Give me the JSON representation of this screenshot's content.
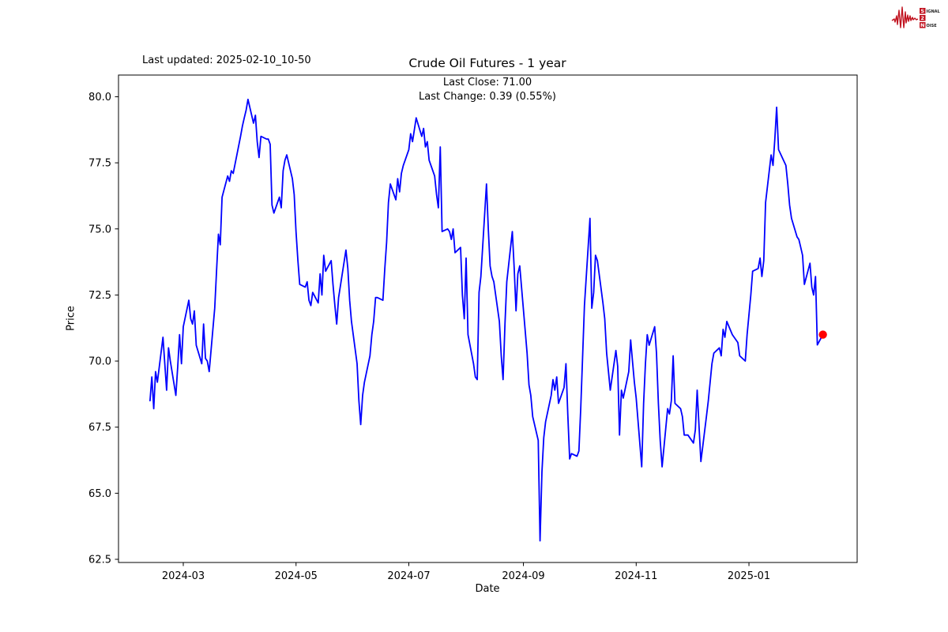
{
  "header": {
    "last_updated": "Last updated: 2025-02-10_10-50",
    "logo": {
      "row1_boxed": "S",
      "row1_rest": "IGNAL",
      "row2_boxed": "2",
      "row3_boxed": "N",
      "row3_rest": "OISE",
      "accent_color": "#c1121f"
    }
  },
  "chart_data": {
    "type": "line",
    "title": "Crude Oil Futures - 1 year",
    "annotation_line1": "Last Close: 71.00",
    "annotation_line2": "Last Change: 0.39 (0.55%)",
    "xlabel": "Date",
    "ylabel": "Price",
    "x_ticks": [
      "2024-03",
      "2024-05",
      "2024-07",
      "2024-09",
      "2024-11",
      "2025-01"
    ],
    "y_ticks": [
      "62.5",
      "65.0",
      "67.5",
      "70.0",
      "72.5",
      "75.0",
      "77.5",
      "80.0"
    ],
    "ylim": [
      62.37,
      80.82
    ],
    "x_range": [
      "2024-02-12",
      "2025-02-10"
    ],
    "grid": false,
    "legend": "none",
    "line_color": "#0000ff",
    "last_point_color": "#ff0000",
    "last_close": 71.0,
    "last_change": 0.39,
    "last_change_pct": "0.55%",
    "points": [
      [
        "2024-02-12",
        68.5
      ],
      [
        "2024-02-13",
        69.4
      ],
      [
        "2024-02-14",
        68.2
      ],
      [
        "2024-02-15",
        69.6
      ],
      [
        "2024-02-16",
        69.2
      ],
      [
        "2024-02-19",
        70.9
      ],
      [
        "2024-02-20",
        69.9
      ],
      [
        "2024-02-21",
        68.9
      ],
      [
        "2024-02-22",
        70.5
      ],
      [
        "2024-02-23",
        70.0
      ],
      [
        "2024-02-26",
        68.7
      ],
      [
        "2024-02-27",
        69.8
      ],
      [
        "2024-02-28",
        71.0
      ],
      [
        "2024-02-29",
        69.9
      ],
      [
        "2024-03-01",
        71.3
      ],
      [
        "2024-03-04",
        72.3
      ],
      [
        "2024-03-05",
        71.6
      ],
      [
        "2024-03-06",
        71.4
      ],
      [
        "2024-03-07",
        71.9
      ],
      [
        "2024-03-08",
        70.6
      ],
      [
        "2024-03-11",
        69.9
      ],
      [
        "2024-03-12",
        71.4
      ],
      [
        "2024-03-13",
        70.1
      ],
      [
        "2024-03-14",
        70.0
      ],
      [
        "2024-03-15",
        69.6
      ],
      [
        "2024-03-18",
        72.0
      ],
      [
        "2024-03-19",
        73.4
      ],
      [
        "2024-03-20",
        74.8
      ],
      [
        "2024-03-21",
        74.4
      ],
      [
        "2024-03-22",
        76.2
      ],
      [
        "2024-03-25",
        77.0
      ],
      [
        "2024-03-26",
        76.8
      ],
      [
        "2024-03-27",
        77.2
      ],
      [
        "2024-03-28",
        77.1
      ],
      [
        "2024-04-01",
        78.5
      ],
      [
        "2024-04-02",
        78.9
      ],
      [
        "2024-04-03",
        79.2
      ],
      [
        "2024-04-04",
        79.5
      ],
      [
        "2024-04-05",
        79.9
      ],
      [
        "2024-04-08",
        79.0
      ],
      [
        "2024-04-09",
        79.3
      ],
      [
        "2024-04-10",
        78.3
      ],
      [
        "2024-04-11",
        77.7
      ],
      [
        "2024-04-12",
        78.5
      ],
      [
        "2024-04-15",
        78.4
      ],
      [
        "2024-04-16",
        78.4
      ],
      [
        "2024-04-17",
        78.2
      ],
      [
        "2024-04-18",
        75.9
      ],
      [
        "2024-04-19",
        75.6
      ],
      [
        "2024-04-22",
        76.2
      ],
      [
        "2024-04-23",
        75.8
      ],
      [
        "2024-04-24",
        77.2
      ],
      [
        "2024-04-25",
        77.6
      ],
      [
        "2024-04-26",
        77.8
      ],
      [
        "2024-04-29",
        76.9
      ],
      [
        "2024-04-30",
        76.3
      ],
      [
        "2024-05-01",
        74.9
      ],
      [
        "2024-05-02",
        73.8
      ],
      [
        "2024-05-03",
        72.9
      ],
      [
        "2024-05-06",
        72.8
      ],
      [
        "2024-05-07",
        73.0
      ],
      [
        "2024-05-08",
        72.3
      ],
      [
        "2024-05-09",
        72.1
      ],
      [
        "2024-05-10",
        72.6
      ],
      [
        "2024-05-13",
        72.2
      ],
      [
        "2024-05-14",
        73.3
      ],
      [
        "2024-05-15",
        72.5
      ],
      [
        "2024-05-16",
        74.0
      ],
      [
        "2024-05-17",
        73.4
      ],
      [
        "2024-05-20",
        73.8
      ],
      [
        "2024-05-21",
        72.9
      ],
      [
        "2024-05-22",
        72.1
      ],
      [
        "2024-05-23",
        71.4
      ],
      [
        "2024-05-24",
        72.4
      ],
      [
        "2024-05-28",
        74.2
      ],
      [
        "2024-05-29",
        73.5
      ],
      [
        "2024-05-30",
        72.3
      ],
      [
        "2024-05-31",
        71.5
      ],
      [
        "2024-06-03",
        69.9
      ],
      [
        "2024-06-04",
        68.5
      ],
      [
        "2024-06-05",
        67.6
      ],
      [
        "2024-06-06",
        68.7
      ],
      [
        "2024-06-07",
        69.2
      ],
      [
        "2024-06-10",
        70.2
      ],
      [
        "2024-06-11",
        71.0
      ],
      [
        "2024-06-12",
        71.5
      ],
      [
        "2024-06-13",
        72.4
      ],
      [
        "2024-06-14",
        72.4
      ],
      [
        "2024-06-17",
        72.3
      ],
      [
        "2024-06-18",
        73.5
      ],
      [
        "2024-06-19",
        74.5
      ],
      [
        "2024-06-20",
        76.0
      ],
      [
        "2024-06-21",
        76.7
      ],
      [
        "2024-06-24",
        76.1
      ],
      [
        "2024-06-25",
        76.9
      ],
      [
        "2024-06-26",
        76.4
      ],
      [
        "2024-06-27",
        77.1
      ],
      [
        "2024-06-28",
        77.4
      ],
      [
        "2024-07-01",
        78.0
      ],
      [
        "2024-07-02",
        78.6
      ],
      [
        "2024-07-03",
        78.3
      ],
      [
        "2024-07-05",
        79.2
      ],
      [
        "2024-07-08",
        78.5
      ],
      [
        "2024-07-09",
        78.8
      ],
      [
        "2024-07-10",
        78.1
      ],
      [
        "2024-07-11",
        78.3
      ],
      [
        "2024-07-12",
        77.6
      ],
      [
        "2024-07-15",
        77.0
      ],
      [
        "2024-07-16",
        76.3
      ],
      [
        "2024-07-17",
        75.8
      ],
      [
        "2024-07-18",
        78.1
      ],
      [
        "2024-07-19",
        74.9
      ],
      [
        "2024-07-22",
        75.0
      ],
      [
        "2024-07-23",
        74.9
      ],
      [
        "2024-07-24",
        74.6
      ],
      [
        "2024-07-25",
        75.0
      ],
      [
        "2024-07-26",
        74.1
      ],
      [
        "2024-07-29",
        74.3
      ],
      [
        "2024-07-30",
        72.5
      ],
      [
        "2024-07-31",
        71.6
      ],
      [
        "2024-08-01",
        73.9
      ],
      [
        "2024-08-02",
        71.0
      ],
      [
        "2024-08-05",
        69.9
      ],
      [
        "2024-08-06",
        69.4
      ],
      [
        "2024-08-07",
        69.3
      ],
      [
        "2024-08-08",
        72.6
      ],
      [
        "2024-08-09",
        73.2
      ],
      [
        "2024-08-12",
        76.7
      ],
      [
        "2024-08-13",
        75.0
      ],
      [
        "2024-08-14",
        73.6
      ],
      [
        "2024-08-15",
        73.2
      ],
      [
        "2024-08-16",
        73.0
      ],
      [
        "2024-08-19",
        71.5
      ],
      [
        "2024-08-20",
        70.2
      ],
      [
        "2024-08-21",
        69.3
      ],
      [
        "2024-08-22",
        71.4
      ],
      [
        "2024-08-23",
        73.0
      ],
      [
        "2024-08-26",
        74.9
      ],
      [
        "2024-08-27",
        73.5
      ],
      [
        "2024-08-28",
        71.9
      ],
      [
        "2024-08-29",
        73.3
      ],
      [
        "2024-08-30",
        73.6
      ],
      [
        "2024-09-03",
        70.3
      ],
      [
        "2024-09-04",
        69.1
      ],
      [
        "2024-09-05",
        68.7
      ],
      [
        "2024-09-06",
        67.9
      ],
      [
        "2024-09-09",
        67.0
      ],
      [
        "2024-09-10",
        63.2
      ],
      [
        "2024-09-11",
        65.8
      ],
      [
        "2024-09-12",
        67.1
      ],
      [
        "2024-09-13",
        67.7
      ],
      [
        "2024-09-16",
        68.7
      ],
      [
        "2024-09-17",
        69.3
      ],
      [
        "2024-09-18",
        68.9
      ],
      [
        "2024-09-19",
        69.4
      ],
      [
        "2024-09-20",
        68.4
      ],
      [
        "2024-09-23",
        69.0
      ],
      [
        "2024-09-24",
        69.9
      ],
      [
        "2024-09-25",
        68.0
      ],
      [
        "2024-09-26",
        66.3
      ],
      [
        "2024-09-27",
        66.5
      ],
      [
        "2024-09-30",
        66.4
      ],
      [
        "2024-10-01",
        66.6
      ],
      [
        "2024-10-02",
        68.2
      ],
      [
        "2024-10-03",
        70.1
      ],
      [
        "2024-10-04",
        72.1
      ],
      [
        "2024-10-07",
        75.4
      ],
      [
        "2024-10-08",
        72.0
      ],
      [
        "2024-10-09",
        72.6
      ],
      [
        "2024-10-10",
        74.0
      ],
      [
        "2024-10-11",
        73.8
      ],
      [
        "2024-10-14",
        72.2
      ],
      [
        "2024-10-15",
        71.6
      ],
      [
        "2024-10-16",
        70.3
      ],
      [
        "2024-10-17",
        69.6
      ],
      [
        "2024-10-18",
        68.9
      ],
      [
        "2024-10-21",
        70.4
      ],
      [
        "2024-10-22",
        69.8
      ],
      [
        "2024-10-23",
        67.2
      ],
      [
        "2024-10-24",
        68.9
      ],
      [
        "2024-10-25",
        68.6
      ],
      [
        "2024-10-28",
        69.6
      ],
      [
        "2024-10-29",
        70.8
      ],
      [
        "2024-10-30",
        70.0
      ],
      [
        "2024-10-31",
        69.2
      ],
      [
        "2024-11-01",
        68.6
      ],
      [
        "2024-11-04",
        66.0
      ],
      [
        "2024-11-05",
        68.4
      ],
      [
        "2024-11-06",
        69.9
      ],
      [
        "2024-11-07",
        71.0
      ],
      [
        "2024-11-08",
        70.6
      ],
      [
        "2024-11-11",
        71.3
      ],
      [
        "2024-11-12",
        70.3
      ],
      [
        "2024-11-13",
        68.4
      ],
      [
        "2024-11-14",
        67.0
      ],
      [
        "2024-11-15",
        66.0
      ],
      [
        "2024-11-18",
        68.2
      ],
      [
        "2024-11-19",
        68.0
      ],
      [
        "2024-11-20",
        68.5
      ],
      [
        "2024-11-21",
        70.2
      ],
      [
        "2024-11-22",
        68.4
      ],
      [
        "2024-11-25",
        68.2
      ],
      [
        "2024-11-26",
        67.9
      ],
      [
        "2024-11-27",
        67.2
      ],
      [
        "2024-11-29",
        67.2
      ],
      [
        "2024-12-02",
        66.9
      ],
      [
        "2024-12-03",
        67.4
      ],
      [
        "2024-12-04",
        68.9
      ],
      [
        "2024-12-05",
        67.5
      ],
      [
        "2024-12-06",
        66.2
      ],
      [
        "2024-12-09",
        67.9
      ],
      [
        "2024-12-10",
        68.5
      ],
      [
        "2024-12-11",
        69.2
      ],
      [
        "2024-12-12",
        69.9
      ],
      [
        "2024-12-13",
        70.3
      ],
      [
        "2024-12-16",
        70.5
      ],
      [
        "2024-12-17",
        70.2
      ],
      [
        "2024-12-18",
        71.2
      ],
      [
        "2024-12-19",
        70.9
      ],
      [
        "2024-12-20",
        71.5
      ],
      [
        "2024-12-23",
        71.0
      ],
      [
        "2024-12-26",
        70.7
      ],
      [
        "2024-12-27",
        70.2
      ],
      [
        "2024-12-30",
        70.0
      ],
      [
        "2024-12-31",
        71.0
      ],
      [
        "2025-01-02",
        72.5
      ],
      [
        "2025-01-03",
        73.4
      ],
      [
        "2025-01-06",
        73.5
      ],
      [
        "2025-01-07",
        73.9
      ],
      [
        "2025-01-08",
        73.2
      ],
      [
        "2025-01-09",
        73.8
      ],
      [
        "2025-01-10",
        76.0
      ],
      [
        "2025-01-13",
        77.8
      ],
      [
        "2025-01-14",
        77.4
      ],
      [
        "2025-01-15",
        78.4
      ],
      [
        "2025-01-16",
        79.6
      ],
      [
        "2025-01-17",
        78.0
      ],
      [
        "2025-01-21",
        77.4
      ],
      [
        "2025-01-22",
        76.7
      ],
      [
        "2025-01-23",
        75.9
      ],
      [
        "2025-01-24",
        75.4
      ],
      [
        "2025-01-27",
        74.7
      ],
      [
        "2025-01-28",
        74.6
      ],
      [
        "2025-01-29",
        74.3
      ],
      [
        "2025-01-30",
        74.0
      ],
      [
        "2025-01-31",
        72.9
      ],
      [
        "2025-02-03",
        73.7
      ],
      [
        "2025-02-04",
        72.8
      ],
      [
        "2025-02-05",
        72.5
      ],
      [
        "2025-02-06",
        73.2
      ],
      [
        "2025-02-07",
        70.61
      ],
      [
        "2025-02-10",
        71.0
      ]
    ]
  }
}
